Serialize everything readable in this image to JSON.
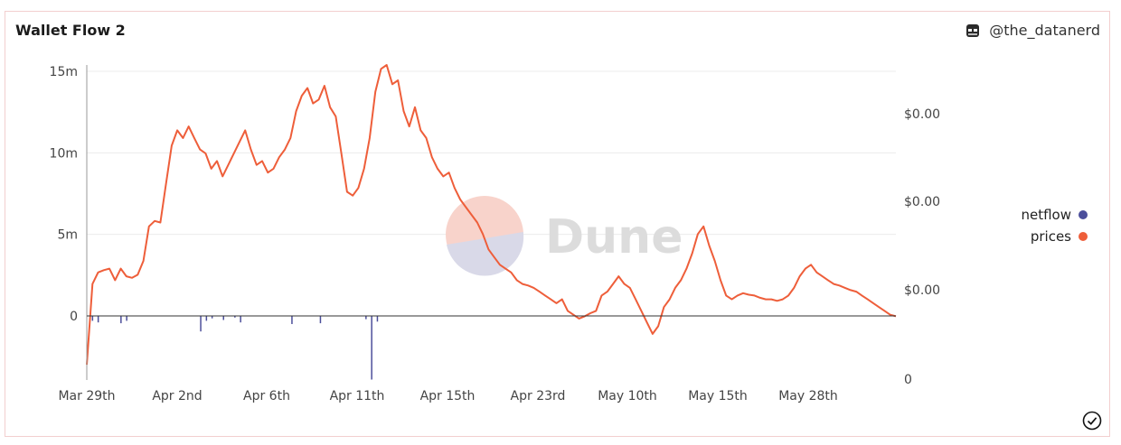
{
  "header": {
    "title": "Wallet Flow 2",
    "author": "@the_datanerd"
  },
  "watermark": {
    "text": "Dune"
  },
  "legend": {
    "items": [
      {
        "label": "netflow",
        "color": "#4c4f9b"
      },
      {
        "label": "prices",
        "color": "#ee5e3a"
      }
    ]
  },
  "chart_data": {
    "type": "line",
    "x_tick_labels": [
      "Mar 29th",
      "Apr 2nd",
      "Apr 6th",
      "Apr 11th",
      "Apr 15th",
      "Apr 23rd",
      "May 10th",
      "May 15th",
      "May 28th"
    ],
    "y_left": {
      "ticks": [
        "15m",
        "10m",
        "5m",
        "0"
      ],
      "ylim": [
        -3900000,
        15000000
      ]
    },
    "y_right": {
      "ticks": [
        "$0.00",
        "$0.00",
        "$0.00",
        "0"
      ]
    },
    "grid": true,
    "legend_placement": "right",
    "series": [
      {
        "name": "prices",
        "axis": "right",
        "color": "#ee5e3a",
        "values": [
          5.5,
          16.0,
          17.5,
          17.8,
          18.0,
          16.5,
          18.0,
          17.0,
          16.8,
          17.2,
          19.0,
          23.5,
          24.2,
          24.0,
          29.0,
          34.0,
          36.0,
          35.0,
          36.5,
          35.0,
          33.5,
          33.0,
          31.0,
          32.0,
          30.0,
          31.5,
          33.0,
          34.5,
          36.0,
          33.5,
          31.5,
          32.0,
          30.5,
          31.0,
          32.5,
          33.5,
          35.0,
          38.5,
          40.5,
          41.5,
          39.5,
          40.0,
          41.8,
          39.0,
          37.8,
          33.0,
          28.0,
          27.5,
          28.5,
          31.0,
          35.0,
          41.0,
          44.0,
          44.5,
          42.0,
          42.5,
          38.5,
          36.5,
          39.0,
          36.0,
          35.0,
          32.5,
          31.0,
          30.0,
          30.5,
          28.5,
          27.0,
          26.0,
          25.0,
          24.0,
          22.5,
          20.5,
          19.5,
          18.5,
          18.0,
          17.5,
          16.5,
          16.0,
          15.8,
          15.5,
          15.0,
          14.5,
          14.0,
          13.5,
          14.0,
          12.5,
          12.0,
          11.5,
          11.8,
          12.2,
          12.5,
          14.5,
          15.0,
          16.0,
          17.0,
          16.0,
          15.5,
          14.0,
          12.5,
          11.0,
          9.5,
          10.5,
          13.0,
          14.0,
          15.5,
          16.5,
          18.0,
          20.0,
          22.5,
          23.5,
          21.0,
          19.0,
          16.5,
          14.5,
          14.0,
          14.5,
          14.8,
          14.6,
          14.5,
          14.2,
          14.0,
          14.0,
          13.8,
          14.0,
          14.5,
          15.5,
          17.0,
          18.0,
          18.5,
          17.5,
          17.0,
          16.5,
          16.0,
          15.8,
          15.5,
          15.2,
          15.0,
          14.5,
          14.0,
          13.5,
          13.0,
          12.5,
          12.0,
          11.8
        ]
      },
      {
        "name": "netflow",
        "axis": "left",
        "color": "#4c4f9b",
        "values": [
          0,
          -300000,
          -400000,
          0,
          0,
          0,
          -450000,
          -300000,
          0,
          0,
          0,
          0,
          0,
          0,
          0,
          0,
          0,
          0,
          0,
          0,
          -950000,
          -300000,
          -150000,
          0,
          -250000,
          0,
          -100000,
          -400000,
          0,
          0,
          0,
          0,
          0,
          0,
          0,
          0,
          -500000,
          0,
          0,
          0,
          0,
          -450000,
          0,
          0,
          0,
          0,
          0,
          0,
          0,
          -200000,
          -3900000,
          -350000,
          0,
          0,
          0,
          0,
          0,
          0,
          0,
          0,
          0,
          0,
          0,
          0,
          0,
          0,
          0,
          0,
          0,
          0,
          0,
          0,
          0,
          0,
          0,
          0,
          0,
          0,
          0,
          0,
          0,
          0,
          0,
          0,
          0,
          0,
          0,
          0,
          0,
          0,
          0,
          0,
          0,
          0,
          0,
          0,
          0,
          0,
          0,
          0,
          0,
          0,
          0,
          0,
          0,
          0,
          0,
          0,
          0,
          0,
          0,
          0,
          0,
          0,
          0,
          0,
          0,
          0,
          0,
          0,
          0,
          0,
          0,
          0,
          0,
          0,
          0,
          0,
          0,
          0,
          0,
          0,
          0,
          0,
          0,
          0,
          0,
          0,
          0,
          0,
          0,
          0,
          0
        ]
      }
    ]
  }
}
